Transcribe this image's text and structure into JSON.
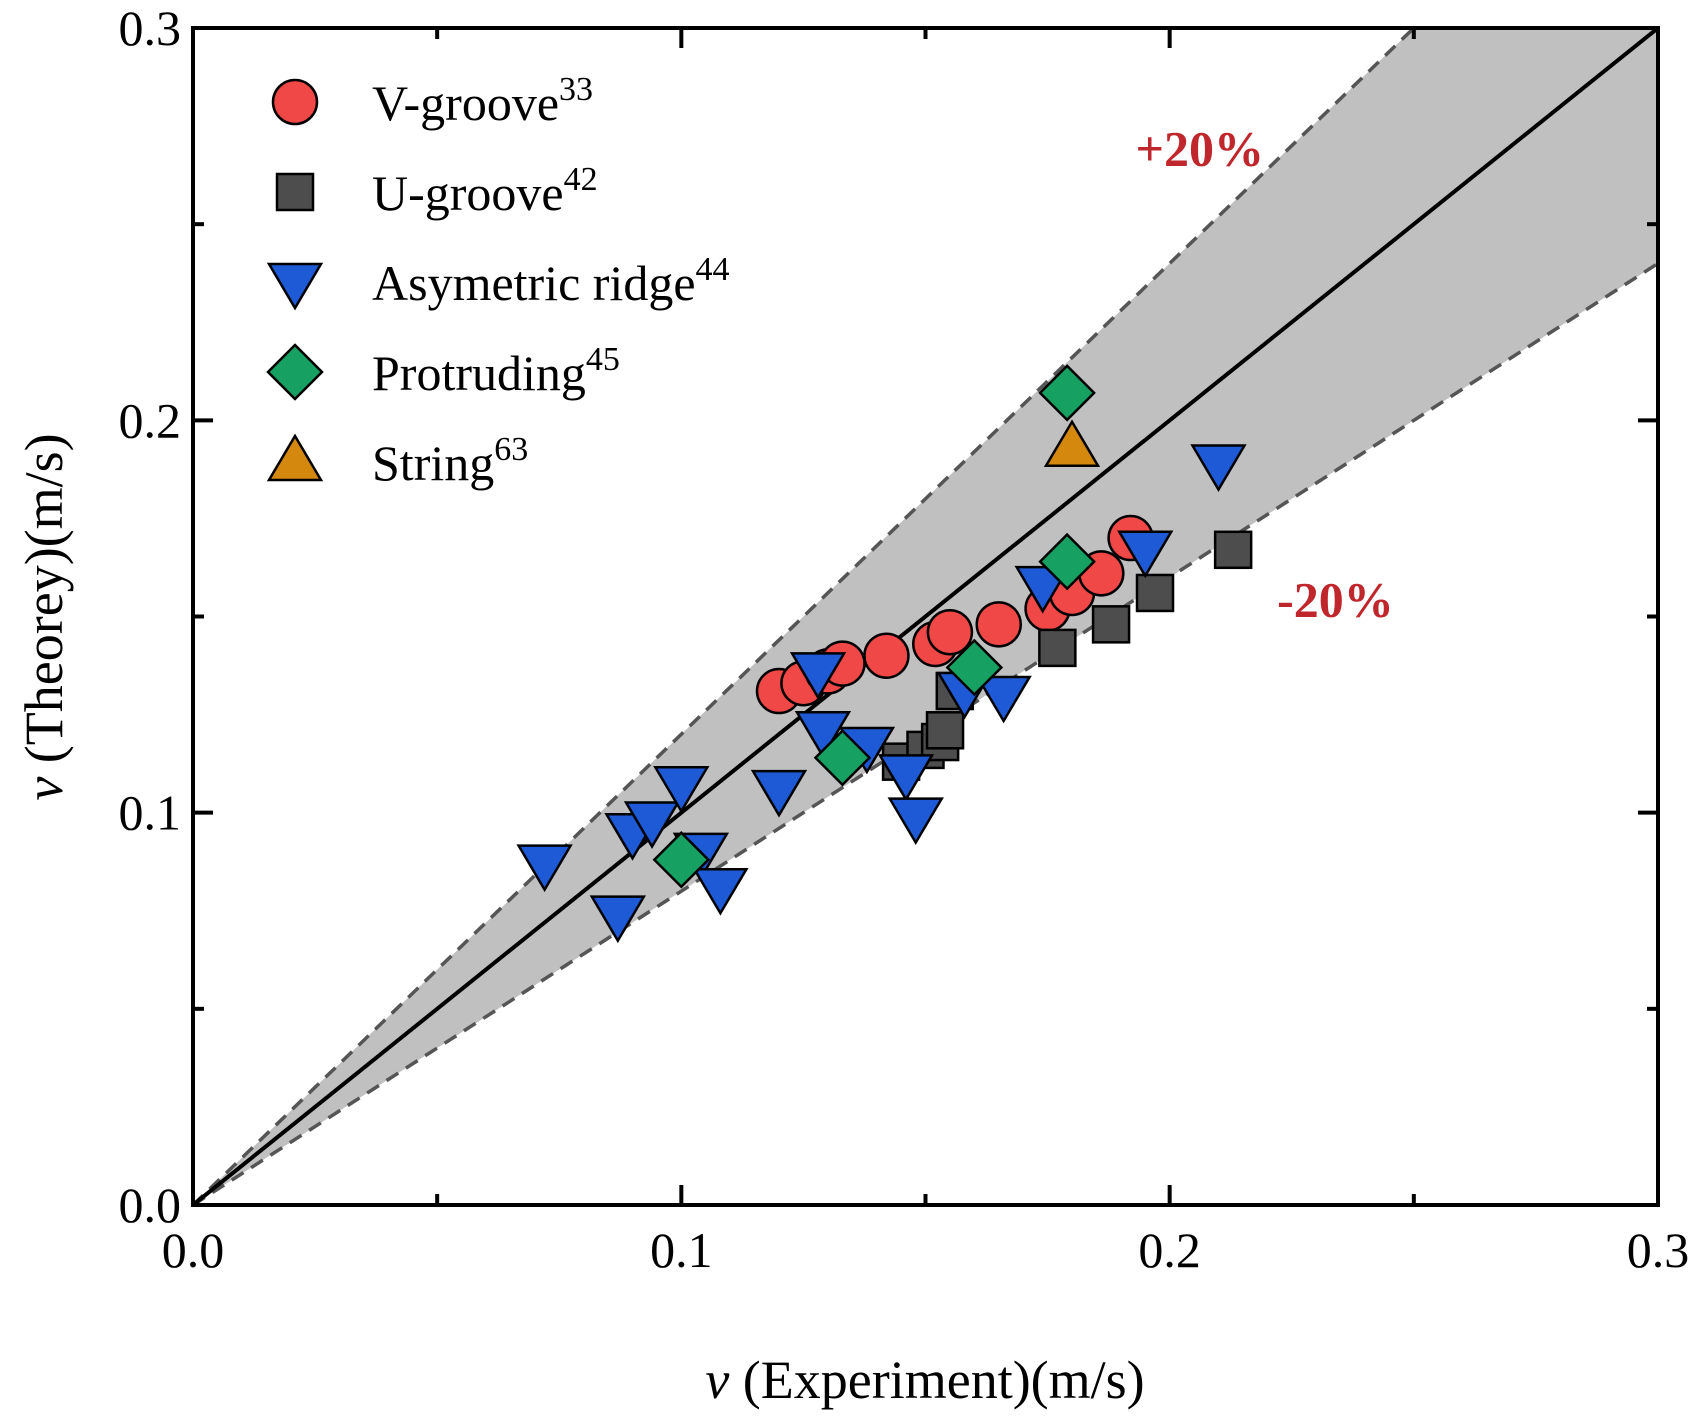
{
  "chart_data": {
    "type": "scatter",
    "xlabel": {
      "var": "v",
      "text": " (Experiment)(m/s)"
    },
    "ylabel": {
      "var": "v",
      "text": " (Theorey)(m/s)"
    },
    "xlim": [
      0,
      0.3
    ],
    "ylim": [
      0,
      0.3
    ],
    "xticks": [
      "0.0",
      "0.1",
      "0.2",
      "0.3"
    ],
    "yticks": [
      "0.0",
      "0.1",
      "0.2",
      "0.3"
    ],
    "tick_values": [
      0,
      0.1,
      0.2,
      0.3
    ],
    "minor_tick_values": [
      0.05,
      0.15,
      0.25
    ],
    "grid": false,
    "legend_position": "top-left",
    "reference_lines": {
      "identity": {
        "slope": 1.0
      },
      "upper": {
        "slope": 1.2,
        "label": "+20%",
        "label_at": [
          0.193,
          0.265
        ]
      },
      "lower": {
        "slope": 0.8,
        "label": "-20%",
        "label_at": [
          0.222,
          0.15
        ]
      },
      "band_color": "#c0c0c0",
      "label_color": "#c0272d"
    },
    "series": [
      {
        "name": "V-groove",
        "ref": "33",
        "marker": "circle",
        "color": "#f04747",
        "points": [
          [
            0.12,
            0.131
          ],
          [
            0.125,
            0.133
          ],
          [
            0.13,
            0.136
          ],
          [
            0.133,
            0.138
          ],
          [
            0.142,
            0.14
          ],
          [
            0.152,
            0.143
          ],
          [
            0.155,
            0.146
          ],
          [
            0.165,
            0.148
          ],
          [
            0.175,
            0.152
          ],
          [
            0.18,
            0.156
          ],
          [
            0.186,
            0.161
          ],
          [
            0.192,
            0.17
          ]
        ]
      },
      {
        "name": "U-groove",
        "ref": "42",
        "marker": "square",
        "color": "#4d4d4d",
        "points": [
          [
            0.145,
            0.113
          ],
          [
            0.15,
            0.116
          ],
          [
            0.153,
            0.118
          ],
          [
            0.154,
            0.121
          ],
          [
            0.156,
            0.131
          ],
          [
            0.177,
            0.142
          ],
          [
            0.188,
            0.148
          ],
          [
            0.197,
            0.156
          ],
          [
            0.213,
            0.167
          ]
        ]
      },
      {
        "name": "Asymetric ridge",
        "ref": "44",
        "marker": "triangle-down",
        "color": "#1e5ad6",
        "points": [
          [
            0.072,
            0.087
          ],
          [
            0.087,
            0.074
          ],
          [
            0.09,
            0.095
          ],
          [
            0.094,
            0.098
          ],
          [
            0.1,
            0.107
          ],
          [
            0.104,
            0.09
          ],
          [
            0.108,
            0.081
          ],
          [
            0.12,
            0.106
          ],
          [
            0.128,
            0.136
          ],
          [
            0.129,
            0.121
          ],
          [
            0.138,
            0.117
          ],
          [
            0.146,
            0.11
          ],
          [
            0.148,
            0.099
          ],
          [
            0.158,
            0.131
          ],
          [
            0.166,
            0.13
          ],
          [
            0.174,
            0.158
          ],
          [
            0.195,
            0.167
          ],
          [
            0.21,
            0.189
          ]
        ]
      },
      {
        "name": "Protruding",
        "ref": "45",
        "marker": "diamond",
        "color": "#16a061",
        "points": [
          [
            0.1,
            0.088
          ],
          [
            0.133,
            0.114
          ],
          [
            0.16,
            0.137
          ],
          [
            0.179,
            0.164
          ],
          [
            0.179,
            0.207
          ]
        ]
      },
      {
        "name": "String",
        "ref": "63",
        "marker": "triangle-up",
        "color": "#d4890e",
        "points": [
          [
            0.18,
            0.193
          ]
        ]
      }
    ]
  }
}
